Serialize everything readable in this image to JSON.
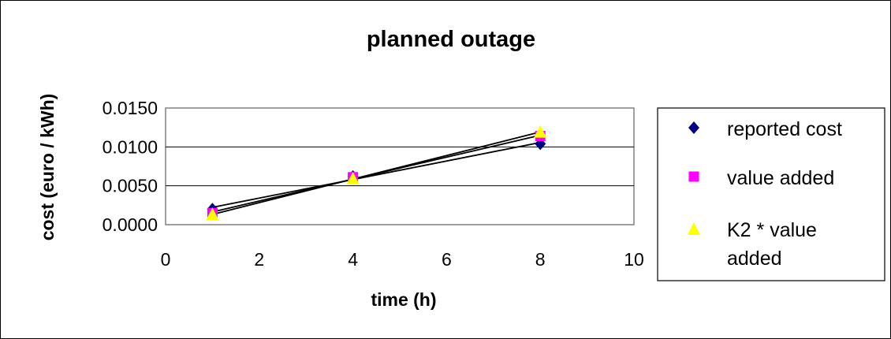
{
  "chart_data": {
    "type": "scatter",
    "title": "planned outage",
    "xlabel": "time (h)",
    "ylabel": "cost (euro / kWh)",
    "xlim": [
      0,
      10
    ],
    "ylim": [
      0,
      0.015
    ],
    "xticks": [
      "0",
      "2",
      "4",
      "6",
      "8",
      "10"
    ],
    "yticks": [
      "0.0000",
      "0.0050",
      "0.0100",
      "0.0150"
    ],
    "grid": "horizontal",
    "legend_position": "right",
    "trendlines": true,
    "series": [
      {
        "name": "reported cost",
        "marker": "diamond",
        "color": "#000080",
        "x": [
          1,
          4,
          8
        ],
        "y": [
          0.002,
          0.0062,
          0.0104
        ]
      },
      {
        "name": "value added",
        "marker": "square",
        "color": "#ff00ff",
        "x": [
          1,
          4,
          8
        ],
        "y": [
          0.0015,
          0.0061,
          0.0114
        ]
      },
      {
        "name": "K2 * value added",
        "marker": "triangle",
        "color": "#ffff00",
        "x": [
          1,
          4,
          8
        ],
        "y": [
          0.0013,
          0.0059,
          0.0119
        ]
      }
    ]
  }
}
